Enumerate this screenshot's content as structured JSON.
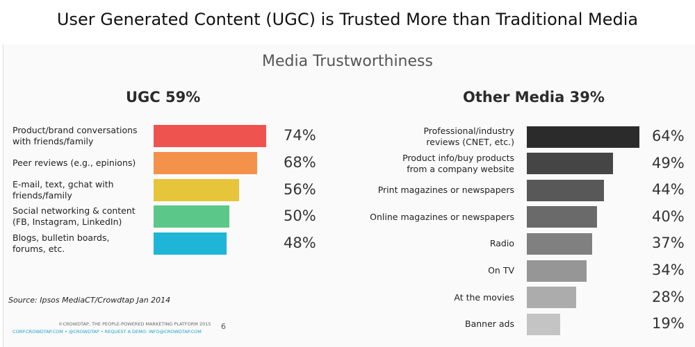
{
  "slide": {
    "title": "User Generated Content (UGC) is Trusted More than Traditional Media"
  },
  "chart_data": [
    {
      "type": "bar",
      "orientation": "horizontal",
      "title": "UGC 59%",
      "overall_title": "Media Trustworthiness",
      "categories": [
        "Product/brand conversations\nwith friends/family",
        "Peer reviews (e.g., epinions)",
        "E-mail, text, gchat with\nfriends/family",
        "Social networking & content\n(FB, Instagram, LinkedIn)",
        "Blogs, bulletin boards,\nforums, etc."
      ],
      "values": [
        74,
        68,
        56,
        50,
        48
      ],
      "value_labels": [
        "74%",
        "68%",
        "56%",
        "50%",
        "48%"
      ],
      "colors": [
        "#ef5350",
        "#f4914a",
        "#e6c53a",
        "#5bc788",
        "#1fb5d6"
      ],
      "label_align": "left",
      "grid": false,
      "legend": "none"
    },
    {
      "type": "bar",
      "orientation": "horizontal",
      "title": "Other Media 39%",
      "categories": [
        "Professional/industry\nreviews (CNET, etc.)",
        "Product info/buy products\nfrom a company website",
        "Print magazines or newspapers",
        "Online magazines or newspapers",
        "Radio",
        "On TV",
        "At the movies",
        "Banner ads"
      ],
      "values": [
        64,
        49,
        44,
        40,
        37,
        34,
        28,
        19
      ],
      "value_labels": [
        "64%",
        "49%",
        "44%",
        "40%",
        "37%",
        "34%",
        "28%",
        "19%"
      ],
      "colors": [
        "#2b2b2b",
        "#454545",
        "#585858",
        "#6a6a6a",
        "#808080",
        "#969696",
        "#acacac",
        "#c4c4c4"
      ],
      "label_align": "right",
      "grid": false,
      "legend": "none"
    }
  ],
  "source": "Source: Ipsos MediaCT/Crowdtap Jan 2014",
  "footer": {
    "line1": "©CROWDTAP, THE PEOPLE-POWERED MARKETING PLATFORM 2015",
    "line2": "CORP.CROWDTAP.COM • @CROWDTAP • REQUEST A DEMO: INFO@CROWDTAP.COM",
    "page_number": "6"
  }
}
